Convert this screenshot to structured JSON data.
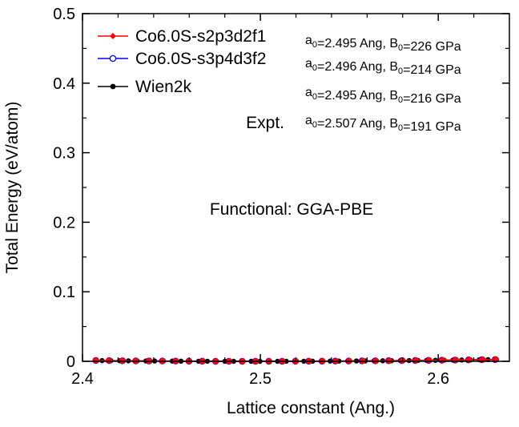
{
  "chart_data": {
    "type": "line",
    "xlabel": "Lattice constant (Ang.)",
    "ylabel": "Total Energy (eV/atom)",
    "xlim": [
      2.4,
      2.64
    ],
    "ylim": [
      0,
      0.5
    ],
    "xticks": [
      2.4,
      2.5,
      2.6
    ],
    "yticks": [
      0,
      0.1,
      0.2,
      0.3,
      0.4,
      0.5
    ],
    "xtick_labels": [
      "2.4",
      "2.5",
      "2.6"
    ],
    "ytick_labels": [
      "0",
      "0.1",
      "0.2",
      "0.3",
      "0.4",
      "0.5"
    ],
    "grid": false,
    "legend_position": "top-left",
    "functional_label": "Functional: GGA-PBE",
    "series": [
      {
        "name": "Co6.0S-s2p3d2f1",
        "color": "#ff0000",
        "marker": "filled-diamond",
        "a0": 2.495,
        "B0": 226,
        "x_start": 2.4075,
        "x_end": 2.6325,
        "n_points": 31
      },
      {
        "name": "Co6.0S-s3p4d3f2",
        "color": "#0000ff",
        "marker": "open-circle",
        "a0": 2.496,
        "B0": 214,
        "x_start": 2.4075,
        "x_end": 2.632,
        "n_points": 31
      },
      {
        "name": "Wien2k",
        "color": "#000000",
        "marker": "filled-circle",
        "a0": 2.495,
        "B0": 216,
        "x_start": 2.411,
        "x_end": 2.628,
        "n_points": 45
      }
    ],
    "annotations": [
      {
        "prefix": "a",
        "sub": "0",
        "a_text": "=2.495 Ang, B",
        "b_sub": "0",
        "b_text": "=226 GPa"
      },
      {
        "prefix": "a",
        "sub": "0",
        "a_text": "=2.496 Ang, B",
        "b_sub": "0",
        "b_text": "=214 GPa"
      },
      {
        "prefix": "a",
        "sub": "0",
        "a_text": "=2.495 Ang, B",
        "b_sub": "0",
        "b_text": "=216 GPa"
      },
      {
        "prefix": "a",
        "sub": "0",
        "a_text": "=2.507 Ang, B",
        "b_sub": "0",
        "b_text": "=191 GPa"
      }
    ],
    "expt_label": "Expt."
  }
}
